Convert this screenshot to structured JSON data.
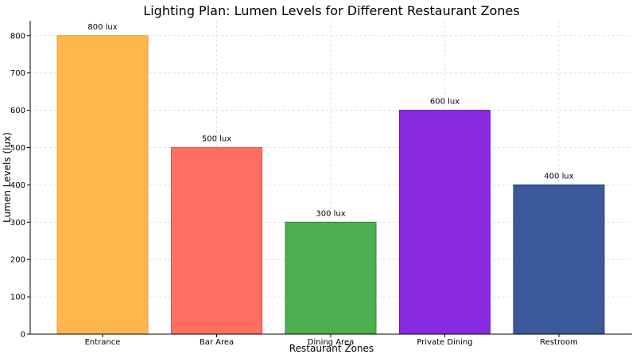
{
  "chart_data": {
    "type": "bar",
    "title": "Lighting Plan: Lumen Levels for Different Restaurant Zones",
    "xlabel": "Restaurant Zones",
    "ylabel": "Lumen Levels (lux)",
    "categories": [
      "Entrance",
      "Bar Area",
      "Dining Area",
      "Private Dining",
      "Restroom"
    ],
    "values": [
      800,
      500,
      300,
      600,
      400
    ],
    "data_labels": [
      "800 lux",
      "500 lux",
      "300 lux",
      "600 lux",
      "400 lux"
    ],
    "colors": [
      "#FFB74D",
      "#FF6F61",
      "#4CAF50",
      "#8A2BE2",
      "#3B5998"
    ],
    "edge_colors": [
      "#E69F2E",
      "#E0554A",
      "#2E8B35",
      "#6A1BB8",
      "#243D75"
    ],
    "yticks": [
      0,
      100,
      200,
      300,
      400,
      500,
      600,
      700,
      800
    ],
    "ylim": [
      0,
      840
    ],
    "grid": true
  }
}
